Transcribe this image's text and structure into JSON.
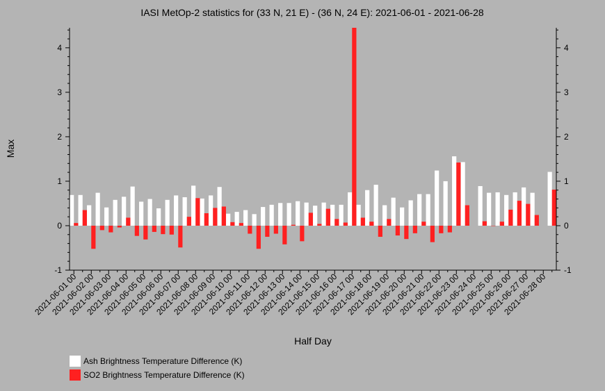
{
  "chart_data": {
    "type": "bar",
    "title": "IASI MetOp-2 statistics for (33 N, 21 E) - (36 N, 24 E): 2021-06-01 - 2021-06-28",
    "xlabel": "Half Day",
    "ylabel": "Max",
    "ylim": [
      -1,
      4.45
    ],
    "yticks": [
      -1,
      0,
      1,
      2,
      3,
      4
    ],
    "x_tick_labels": [
      "2021-06-01 00",
      "2021-06-02 00",
      "2021-06-03 00",
      "2021-06-04 00",
      "2021-06-05 00",
      "2021-06-06 00",
      "2021-06-07 00",
      "2021-06-08 00",
      "2021-06-09 00",
      "2021-06-10 00",
      "2021-06-11 00",
      "2021-06-12 00",
      "2021-06-13 00",
      "2021-06-14 00",
      "2021-06-15 00",
      "2021-06-16 00",
      "2021-06-17 00",
      "2021-06-18 00",
      "2021-06-19 00",
      "2021-06-20 00",
      "2021-06-21 00",
      "2021-06-22 00",
      "2021-06-23 00",
      "2021-06-24 00",
      "2021-06-25 00",
      "2021-06-26 00",
      "2021-06-27 00",
      "2021-06-28 00"
    ],
    "categories": [
      "2021-06-01 00",
      "2021-06-01 12",
      "2021-06-02 00",
      "2021-06-02 12",
      "2021-06-03 00",
      "2021-06-03 12",
      "2021-06-04 00",
      "2021-06-04 12",
      "2021-06-05 00",
      "2021-06-05 12",
      "2021-06-06 00",
      "2021-06-06 12",
      "2021-06-07 00",
      "2021-06-07 12",
      "2021-06-08 00",
      "2021-06-08 12",
      "2021-06-09 00",
      "2021-06-09 12",
      "2021-06-10 00",
      "2021-06-10 12",
      "2021-06-11 00",
      "2021-06-11 12",
      "2021-06-12 00",
      "2021-06-12 12",
      "2021-06-13 00",
      "2021-06-13 12",
      "2021-06-14 00",
      "2021-06-14 12",
      "2021-06-15 00",
      "2021-06-15 12",
      "2021-06-16 00",
      "2021-06-16 12",
      "2021-06-17 00",
      "2021-06-17 12",
      "2021-06-18 00",
      "2021-06-18 12",
      "2021-06-19 00",
      "2021-06-19 12",
      "2021-06-20 00",
      "2021-06-20 12",
      "2021-06-21 00",
      "2021-06-21 12",
      "2021-06-22 00",
      "2021-06-22 12",
      "2021-06-23 00",
      "2021-06-23 12",
      "2021-06-24 00",
      "2021-06-24 12",
      "2021-06-25 00",
      "2021-06-25 12",
      "2021-06-26 00",
      "2021-06-26 12",
      "2021-06-27 00",
      "2021-06-27 12",
      "2021-06-28 00",
      "2021-06-28 12"
    ],
    "series": [
      {
        "name": "Ash Brightness Temperature Difference (K)",
        "color": "#ffffff",
        "values": [
          0.69,
          0.69,
          0.46,
          0.74,
          0.41,
          0.58,
          0.65,
          0.88,
          0.54,
          0.6,
          0.39,
          0.58,
          0.68,
          0.64,
          0.9,
          0.61,
          0.68,
          0.87,
          0.27,
          0.31,
          0.35,
          0.26,
          0.42,
          0.47,
          0.51,
          0.51,
          0.55,
          0.52,
          0.45,
          0.52,
          0.47,
          0.47,
          0.75,
          0.47,
          0.8,
          0.92,
          0.46,
          0.63,
          0.41,
          0.57,
          0.71,
          0.71,
          1.24,
          1.0,
          1.56,
          1.43,
          null,
          0.89,
          0.74,
          0.75,
          0.69,
          0.75,
          0.86,
          0.74,
          null,
          1.21
        ]
      },
      {
        "name": "SO2 Brightness Temperature Difference (K)",
        "color": "#ff2020",
        "values": [
          0.06,
          0.35,
          -0.52,
          -0.1,
          -0.15,
          -0.04,
          0.18,
          -0.23,
          -0.31,
          -0.14,
          -0.19,
          -0.2,
          -0.49,
          0.2,
          0.62,
          0.28,
          0.4,
          0.43,
          0.08,
          0.06,
          -0.18,
          -0.52,
          -0.25,
          -0.18,
          -0.42,
          0.02,
          -0.35,
          0.29,
          0.04,
          0.38,
          0.15,
          0.07,
          4.45,
          0.18,
          0.09,
          -0.25,
          0.15,
          -0.22,
          -0.3,
          -0.17,
          0.09,
          -0.37,
          -0.17,
          -0.15,
          1.42,
          0.46,
          null,
          0.1,
          0.0,
          0.09,
          0.36,
          0.56,
          0.49,
          0.24,
          null,
          0.81
        ]
      }
    ],
    "legend_position": "bottom-left"
  }
}
